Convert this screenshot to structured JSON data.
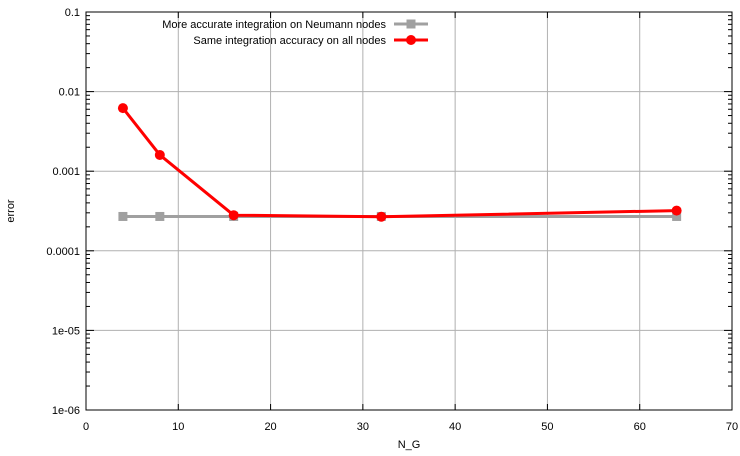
{
  "chart_data": {
    "type": "line",
    "xlabel": "N_G",
    "ylabel": "error",
    "xlim": [
      0,
      70
    ],
    "ylim": [
      1e-06,
      0.1
    ],
    "yscale": "log",
    "x_ticks": [
      0,
      10,
      20,
      30,
      40,
      50,
      60,
      70
    ],
    "x_tick_labels": [
      "0",
      "10",
      "20",
      "30",
      "40",
      "50",
      "60",
      "70"
    ],
    "y_ticks": [
      1e-06,
      1e-05,
      0.0001,
      0.001,
      0.01,
      0.1
    ],
    "y_tick_labels": [
      "1e-06",
      "1e-05",
      "0.0001",
      "0.001",
      "0.01",
      "0.1"
    ],
    "grid": true,
    "legend_position": "top-right",
    "series": [
      {
        "name": "More accurate integration on Neumann nodes",
        "color": "#a0a0a0",
        "marker": "square",
        "x": [
          4,
          8,
          16,
          32,
          64
        ],
        "y": [
          0.00027,
          0.00027,
          0.00027,
          0.00027,
          0.00027
        ]
      },
      {
        "name": "Same integration accuracy on all nodes",
        "color": "#ff0000",
        "marker": "circle",
        "x": [
          4,
          8,
          16,
          32,
          64
        ],
        "y": [
          0.0062,
          0.0016,
          0.00028,
          0.000268,
          0.00032
        ]
      }
    ]
  }
}
